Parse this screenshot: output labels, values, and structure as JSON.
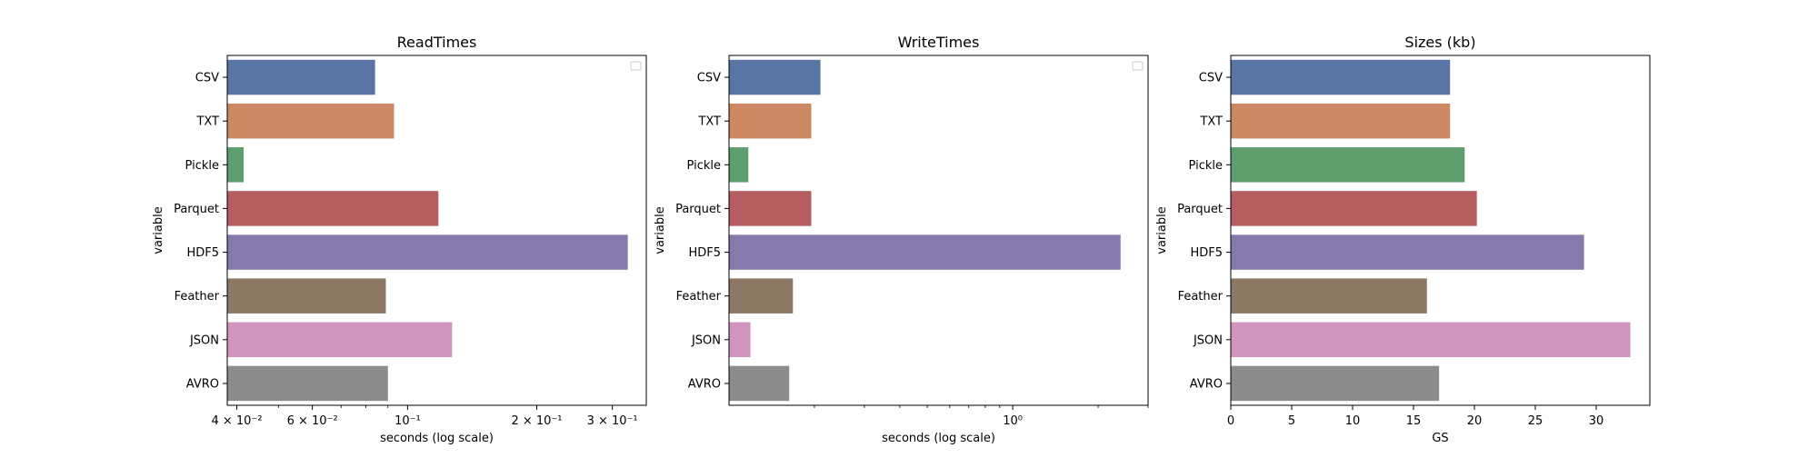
{
  "chart_data": [
    {
      "type": "bar",
      "orientation": "horizontal",
      "title": "ReadTimes",
      "xlabel": "seconds (log scale)",
      "ylabel": "variable",
      "xscale": "log",
      "xlim": [
        0.038,
        0.36
      ],
      "legend": "empty box, upper right",
      "categories": [
        "CSV",
        "TXT",
        "Pickle",
        "Parquet",
        "HDF5",
        "Feather",
        "JSON",
        "AVRO"
      ],
      "values": [
        0.084,
        0.093,
        0.0415,
        0.118,
        0.326,
        0.089,
        0.127,
        0.09
      ],
      "x_ticks": [
        {
          "value": 0.04,
          "label": "4 × 10⁻²"
        },
        {
          "value": 0.06,
          "label": "6 × 10⁻²"
        },
        {
          "value": 0.1,
          "label": "10⁻¹"
        },
        {
          "value": 0.2,
          "label": "2 × 10⁻¹"
        },
        {
          "value": 0.3,
          "label": "3 × 10⁻¹"
        }
      ],
      "minor_ticks": [
        0.05,
        0.07,
        0.08,
        0.09
      ]
    },
    {
      "type": "bar",
      "orientation": "horizontal",
      "title": "WriteTimes",
      "xlabel": "seconds (log scale)",
      "ylabel": "variable",
      "xscale": "log",
      "xlim": [
        0.1,
        3.0
      ],
      "legend": "empty box, upper right",
      "categories": [
        "CSV",
        "TXT",
        "Pickle",
        "Parquet",
        "HDF5",
        "Feather",
        "JSON",
        "AVRO"
      ],
      "values": [
        0.21,
        0.195,
        0.117,
        0.195,
        2.4,
        0.168,
        0.119,
        0.163
      ],
      "x_ticks": [
        {
          "value": 1,
          "label": "10⁰"
        }
      ],
      "minor_ticks": [
        0.2,
        0.3,
        0.4,
        0.5,
        0.6,
        0.7,
        0.8,
        0.9,
        2,
        3
      ]
    },
    {
      "type": "bar",
      "orientation": "horizontal",
      "title": "Sizes (kb)",
      "xlabel": "GS",
      "ylabel": "variable",
      "xscale": "linear",
      "xlim": [
        0,
        34.4
      ],
      "categories": [
        "CSV",
        "TXT",
        "Pickle",
        "Parquet",
        "HDF5",
        "Feather",
        "JSON",
        "AVRO"
      ],
      "values": [
        18.0,
        18.0,
        19.2,
        20.2,
        29.0,
        16.1,
        32.8,
        17.1
      ],
      "x_ticks": [
        {
          "value": 0,
          "label": "0"
        },
        {
          "value": 5,
          "label": "5"
        },
        {
          "value": 10,
          "label": "10"
        },
        {
          "value": 15,
          "label": "15"
        },
        {
          "value": 20,
          "label": "20"
        },
        {
          "value": 25,
          "label": "25"
        },
        {
          "value": 30,
          "label": "30"
        }
      ],
      "minor_ticks": []
    }
  ],
  "colors": {
    "bars": [
      "#5975a4",
      "#cc8963",
      "#5f9e6e",
      "#b55d60",
      "#857aab",
      "#8d7866",
      "#d095bf",
      "#8c8c8c"
    ],
    "axis": "#000000",
    "background": "#ffffff"
  }
}
